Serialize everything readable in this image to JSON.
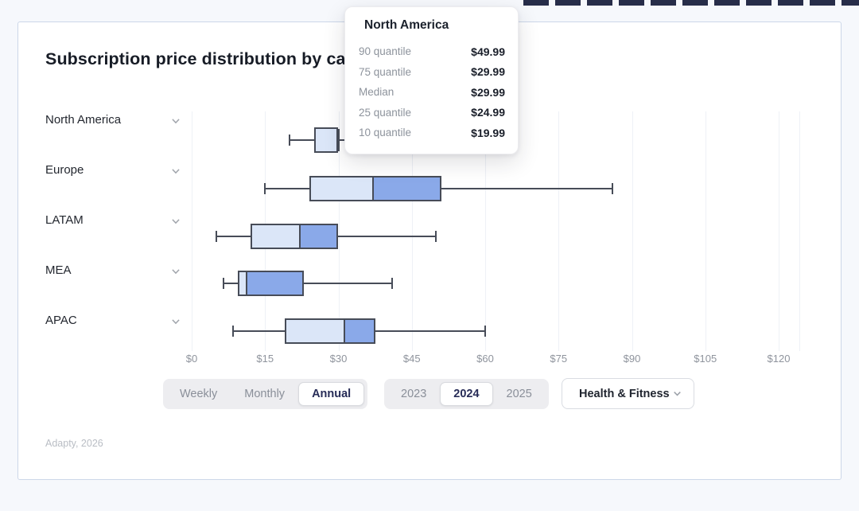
{
  "header": {
    "title": "Subscription price distribution by category"
  },
  "tooltip": {
    "title": "North America",
    "rows": [
      {
        "label": "90 quantile",
        "value": "$49.99"
      },
      {
        "label": "75 quantile",
        "value": "$29.99"
      },
      {
        "label": "Median",
        "value": "$29.99"
      },
      {
        "label": "25 quantile",
        "value": "$24.99"
      },
      {
        "label": "10 quantile",
        "value": "$19.99"
      }
    ]
  },
  "chart_data": {
    "type": "boxplot",
    "orientation": "horizontal",
    "title": "Subscription price distribution by category",
    "categories": [
      "North America",
      "Europe",
      "LATAM",
      "MEA",
      "APAC"
    ],
    "x_axis": {
      "range": [
        0,
        120
      ],
      "ticks": [
        0,
        15,
        30,
        45,
        60,
        75,
        90,
        105,
        120
      ],
      "tick_labels": [
        "$0",
        "$15",
        "$30",
        "$45",
        "$60",
        "$75",
        "$90",
        "$105",
        "$120"
      ],
      "grid": true
    },
    "series": [
      {
        "name": "North America",
        "q10": 19.99,
        "q25": 24.99,
        "median": 29.99,
        "q75": 29.99,
        "q90": 49.99
      },
      {
        "name": "Europe",
        "q10": 14.99,
        "q25": 23.99,
        "median": 36.99,
        "q75": 50.99,
        "q90": 85.99
      },
      {
        "name": "LATAM",
        "q10": 4.99,
        "q25": 11.99,
        "median": 21.99,
        "q75": 29.99,
        "q90": 49.99
      },
      {
        "name": "MEA",
        "q10": 6.49,
        "q25": 9.49,
        "median": 10.99,
        "q75": 22.99,
        "q90": 40.99
      },
      {
        "name": "APAC",
        "q10": 8.49,
        "q25": 18.99,
        "median": 30.99,
        "q75": 37.49,
        "q90": 59.99
      }
    ]
  },
  "controls": {
    "period": {
      "options": [
        "Weekly",
        "Monthly",
        "Annual"
      ],
      "selected": "Annual"
    },
    "year": {
      "options": [
        "2023",
        "2024",
        "2025"
      ],
      "selected": "2024"
    },
    "category": {
      "value": "Health & Fitness"
    }
  },
  "footer": {
    "source": "Adapty, 2026"
  },
  "colors": {
    "box_light": "#dbe6f8",
    "box_dark": "#8aa9e9",
    "box_stroke": "#474c58",
    "grid": "#eef1f6",
    "selected_text": "#272c57",
    "axis_text": "#8f949d",
    "muted_text": "#8a8f99"
  }
}
